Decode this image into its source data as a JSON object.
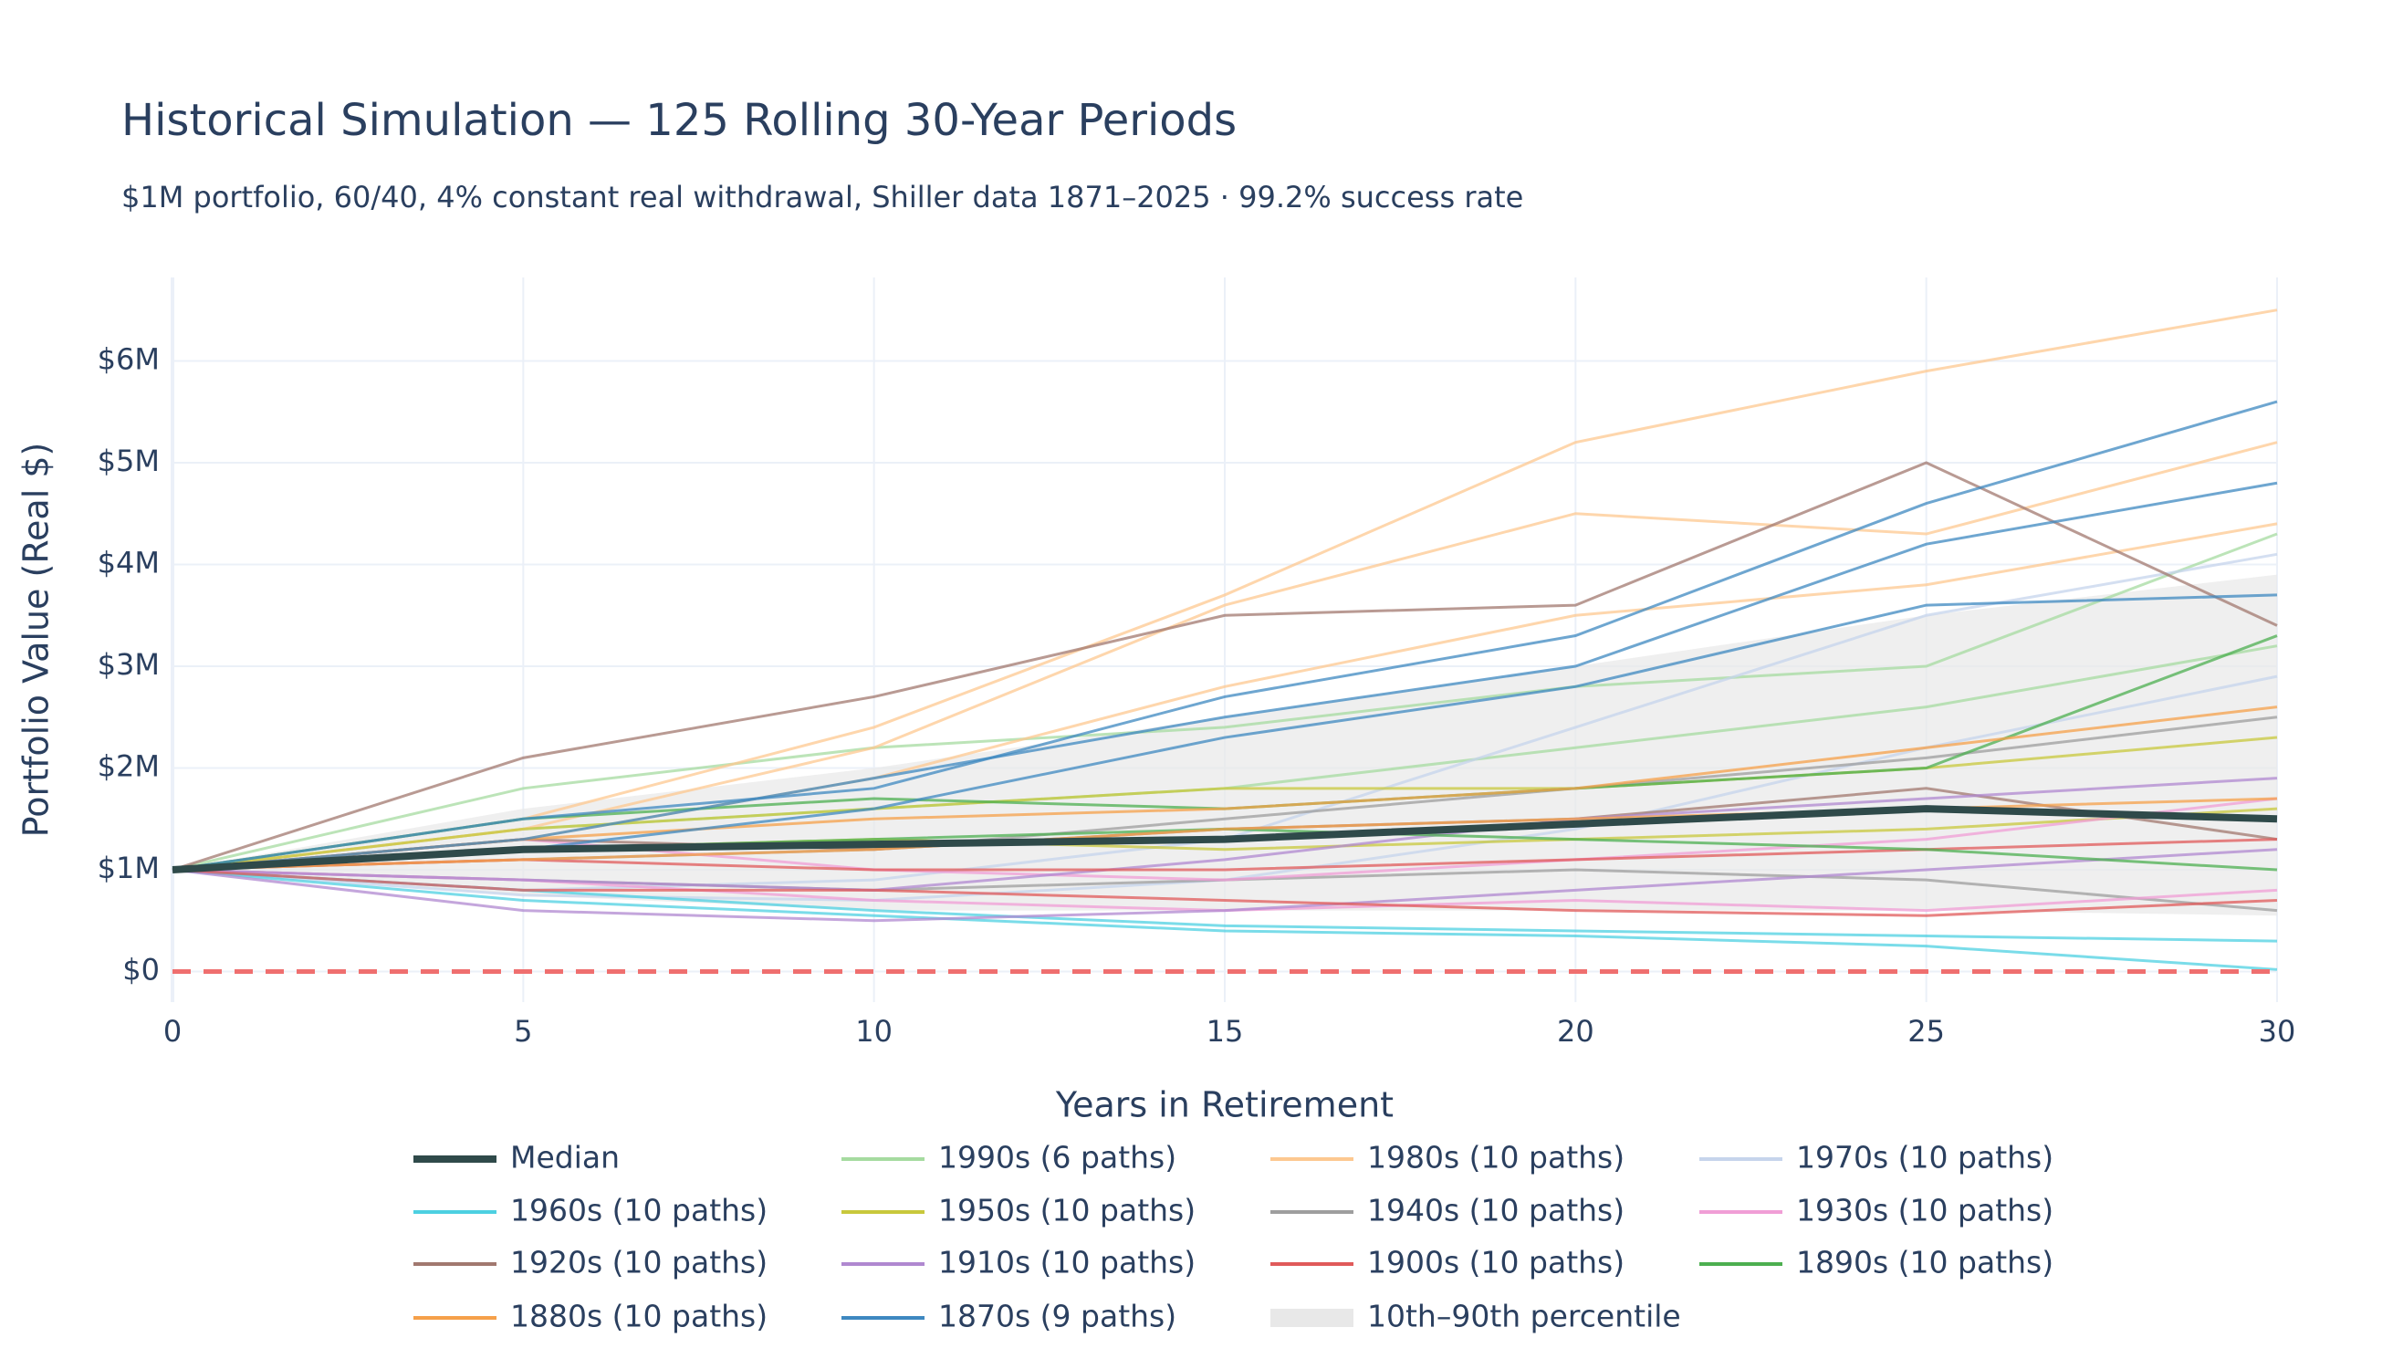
{
  "chart_data": {
    "type": "line",
    "title": "Historical Simulation — 125 Rolling 30-Year Periods",
    "subtitle": "$1M portfolio, 60/40, 4% constant real withdrawal, Shiller data 1871–2025 · 99.2% success rate",
    "x_label": "Years in Retirement",
    "y_label": "Portfolio Value (Real $)",
    "x": [
      0,
      5,
      10,
      15,
      20,
      25,
      30
    ],
    "xlim": [
      0,
      30
    ],
    "xticks": [
      0,
      5,
      10,
      15,
      20,
      25,
      30
    ],
    "ylim": [
      -0.3,
      6.82
    ],
    "yticks": [
      {
        "value": 0,
        "label": "$0"
      },
      {
        "value": 1,
        "label": "$1M"
      },
      {
        "value": 2,
        "label": "$2M"
      },
      {
        "value": 3,
        "label": "$3M"
      },
      {
        "value": 4,
        "label": "$4M"
      },
      {
        "value": 5,
        "label": "$5M"
      },
      {
        "value": 6,
        "label": "$6M"
      }
    ],
    "grid": true,
    "reference_line": {
      "value": 0,
      "color": "#ef6f6f"
    },
    "band": {
      "name": "10th–90th percentile",
      "color": "#e8e8e8",
      "lower": [
        1,
        0.75,
        0.6,
        0.6,
        0.6,
        0.6,
        0.55
      ],
      "upper": [
        1,
        1.6,
        2.0,
        2.5,
        3.0,
        3.5,
        3.9
      ]
    },
    "median": {
      "name": "Median",
      "color": "#2f4a4a",
      "values": [
        1,
        1.2,
        1.25,
        1.3,
        1.45,
        1.6,
        1.5
      ]
    },
    "series": [
      {
        "name": "1990s (6 paths)",
        "color": "#a6dba0",
        "paths": [
          [
            1,
            1.8,
            2.2,
            2.4,
            2.8,
            3.0,
            4.3
          ],
          [
            1,
            1.4,
            1.6,
            1.8,
            2.2,
            2.6,
            3.2
          ]
        ]
      },
      {
        "name": "1980s (10 paths)",
        "color": "#fdc890",
        "paths": [
          [
            1,
            1.5,
            2.4,
            3.7,
            5.2,
            5.9,
            6.5
          ],
          [
            1,
            1.4,
            2.2,
            3.6,
            4.5,
            4.3,
            5.2
          ],
          [
            1,
            1.3,
            1.9,
            2.8,
            3.5,
            3.8,
            4.4
          ]
        ]
      },
      {
        "name": "1970s (10 paths)",
        "color": "#c6d4ec",
        "paths": [
          [
            1,
            0.8,
            0.9,
            1.3,
            2.4,
            3.5,
            4.1
          ],
          [
            1,
            0.75,
            0.7,
            0.9,
            1.4,
            2.2,
            2.9
          ]
        ]
      },
      {
        "name": "1960s (10 paths)",
        "color": "#4dd0e1",
        "paths": [
          [
            1,
            0.7,
            0.55,
            0.4,
            0.35,
            0.25,
            0.02
          ],
          [
            1,
            0.8,
            0.6,
            0.45,
            0.4,
            0.35,
            0.3
          ]
        ]
      },
      {
        "name": "1950s (10 paths)",
        "color": "#c8c83c",
        "paths": [
          [
            1,
            1.4,
            1.6,
            1.8,
            1.8,
            2.0,
            2.3
          ],
          [
            1,
            1.2,
            1.3,
            1.2,
            1.3,
            1.4,
            1.6
          ]
        ]
      },
      {
        "name": "1940s (10 paths)",
        "color": "#9e9e9e",
        "paths": [
          [
            1,
            1.1,
            1.2,
            1.5,
            1.8,
            2.1,
            2.5
          ],
          [
            1,
            0.9,
            0.8,
            0.9,
            1.0,
            0.9,
            0.6
          ]
        ]
      },
      {
        "name": "1930s (10 paths)",
        "color": "#f09ed6",
        "paths": [
          [
            1,
            1.3,
            1.0,
            0.9,
            1.1,
            1.3,
            1.7
          ],
          [
            1,
            0.9,
            0.7,
            0.6,
            0.7,
            0.6,
            0.8
          ]
        ]
      },
      {
        "name": "1920s (10 paths)",
        "color": "#a1786f",
        "paths": [
          [
            1,
            2.1,
            2.7,
            3.5,
            3.6,
            5.0,
            3.4
          ],
          [
            1,
            1.3,
            1.2,
            1.4,
            1.5,
            1.8,
            1.3
          ]
        ]
      },
      {
        "name": "1910s (10 paths)",
        "color": "#b088d0",
        "paths": [
          [
            1,
            0.6,
            0.5,
            0.6,
            0.8,
            1.0,
            1.2
          ],
          [
            1,
            0.9,
            0.8,
            1.1,
            1.5,
            1.7,
            1.9
          ]
        ]
      },
      {
        "name": "1900s (10 paths)",
        "color": "#e05a5a",
        "paths": [
          [
            1,
            0.8,
            0.8,
            0.7,
            0.6,
            0.55,
            0.7
          ],
          [
            1,
            1.1,
            1.0,
            1.0,
            1.1,
            1.2,
            1.3
          ]
        ]
      },
      {
        "name": "1890s (10 paths)",
        "color": "#4caf50",
        "paths": [
          [
            1,
            1.2,
            1.3,
            1.4,
            1.3,
            1.2,
            1.0
          ],
          [
            1,
            1.5,
            1.7,
            1.6,
            1.8,
            2.0,
            3.3
          ]
        ]
      },
      {
        "name": "1880s (10 paths)",
        "color": "#f5a04a",
        "paths": [
          [
            1,
            1.3,
            1.5,
            1.6,
            1.8,
            2.2,
            2.6
          ],
          [
            1,
            1.1,
            1.2,
            1.4,
            1.5,
            1.6,
            1.7
          ]
        ]
      },
      {
        "name": "1870s (9 paths)",
        "color": "#3e88c0",
        "paths": [
          [
            1,
            1.5,
            1.8,
            2.7,
            3.3,
            4.6,
            5.6
          ],
          [
            1,
            1.3,
            1.9,
            2.5,
            3.0,
            4.2,
            4.8
          ],
          [
            1,
            1.2,
            1.6,
            2.3,
            2.8,
            3.6,
            3.7
          ]
        ]
      }
    ]
  }
}
